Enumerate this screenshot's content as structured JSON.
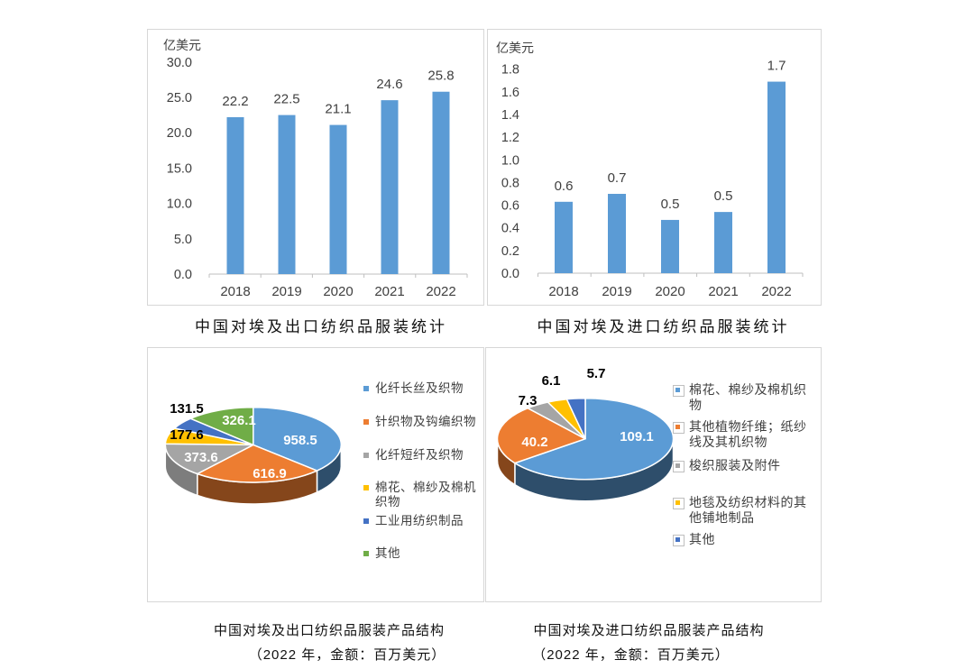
{
  "chart_data": [
    {
      "type": "bar",
      "title": "中国对埃及出口纺织品服装统计",
      "unit_label": "亿美元",
      "categories": [
        "2018",
        "2019",
        "2020",
        "2021",
        "2022"
      ],
      "values": [
        22.2,
        22.5,
        21.1,
        24.6,
        25.8
      ],
      "bar_labels": [
        "22.2",
        "22.5",
        "21.1",
        "24.6",
        "25.8"
      ],
      "ylim": [
        0,
        30
      ],
      "yticks": [
        0,
        5,
        10,
        15,
        20,
        25,
        30
      ],
      "ytick_labels": [
        "0.0",
        "5.0",
        "10.0",
        "15.0",
        "20.0",
        "25.0",
        "30.0"
      ],
      "bar_color": "#5B9BD5",
      "grid": false,
      "legend": "none"
    },
    {
      "type": "bar",
      "title": "中国对埃及进口纺织品服装统计",
      "unit_label": "亿美元",
      "categories": [
        "2018",
        "2019",
        "2020",
        "2021",
        "2022"
      ],
      "values": [
        0.63,
        0.7,
        0.47,
        0.54,
        1.69
      ],
      "bar_labels": [
        "0.6",
        "0.7",
        "0.5",
        "0.5",
        "1.7"
      ],
      "ylim": [
        0,
        1.8
      ],
      "yticks": [
        0,
        0.2,
        0.4,
        0.6,
        0.8,
        1.0,
        1.2,
        1.4,
        1.6,
        1.8
      ],
      "ytick_labels": [
        "0.0",
        "0.2",
        "0.4",
        "0.6",
        "0.8",
        "1.0",
        "1.2",
        "1.4",
        "1.6",
        "1.8"
      ],
      "bar_color": "#5B9BD5",
      "grid": false,
      "legend": "none"
    },
    {
      "type": "pie",
      "style": "pie3d",
      "title": "中国对埃及出口纺织品服装产品结构",
      "subtitle": "（2022 年，金额：百万美元）",
      "legend_position": "right",
      "slices": [
        {
          "label": "化纤长丝及织物",
          "value": 958.5,
          "value_label": "958.5",
          "color": "#5B9BD5",
          "label_style": "inside"
        },
        {
          "label": "针织物及钩编织物",
          "value": 616.9,
          "value_label": "616.9",
          "color": "#ED7D31",
          "label_style": "inside"
        },
        {
          "label": "化纤短纤及织物",
          "value": 373.6,
          "value_label": "373.6",
          "color": "#A5A5A5",
          "label_style": "inside"
        },
        {
          "label": "棉花、棉纱及棉机织物",
          "value": 177.6,
          "value_label": "177.6",
          "color": "#FFC000",
          "label_style": "outside"
        },
        {
          "label": "工业用纺织制品",
          "value": 131.5,
          "value_label": "131.5",
          "color": "#4472C4",
          "label_style": "outside"
        },
        {
          "label": "其他",
          "value": 326.1,
          "value_label": "326.1",
          "color": "#70AD47",
          "label_style": "inside"
        }
      ]
    },
    {
      "type": "pie",
      "style": "pie3d",
      "title": "中国对埃及进口纺织品服装产品结构",
      "subtitle": "（2022 年，金额：百万美元）",
      "legend_position": "right",
      "slices": [
        {
          "label": "棉花、棉纱及棉机织物",
          "value": 109.1,
          "value_label": "109.1",
          "color": "#5B9BD5",
          "label_style": "inside"
        },
        {
          "label": "其他植物纤维；纸纱线及其机织物",
          "value": 40.2,
          "value_label": "40.2",
          "color": "#ED7D31",
          "label_style": "inside"
        },
        {
          "label": "梭织服装及附件",
          "value": 7.3,
          "value_label": "7.3",
          "color": "#A5A5A5",
          "label_style": "outside"
        },
        {
          "label": "地毯及纺织材料的其他铺地制品",
          "value": 6.1,
          "value_label": "6.1",
          "color": "#FFC000",
          "label_style": "outside"
        },
        {
          "label": "其他",
          "value": 5.7,
          "value_label": "5.7",
          "color": "#4472C4",
          "label_style": "outside"
        }
      ]
    }
  ]
}
